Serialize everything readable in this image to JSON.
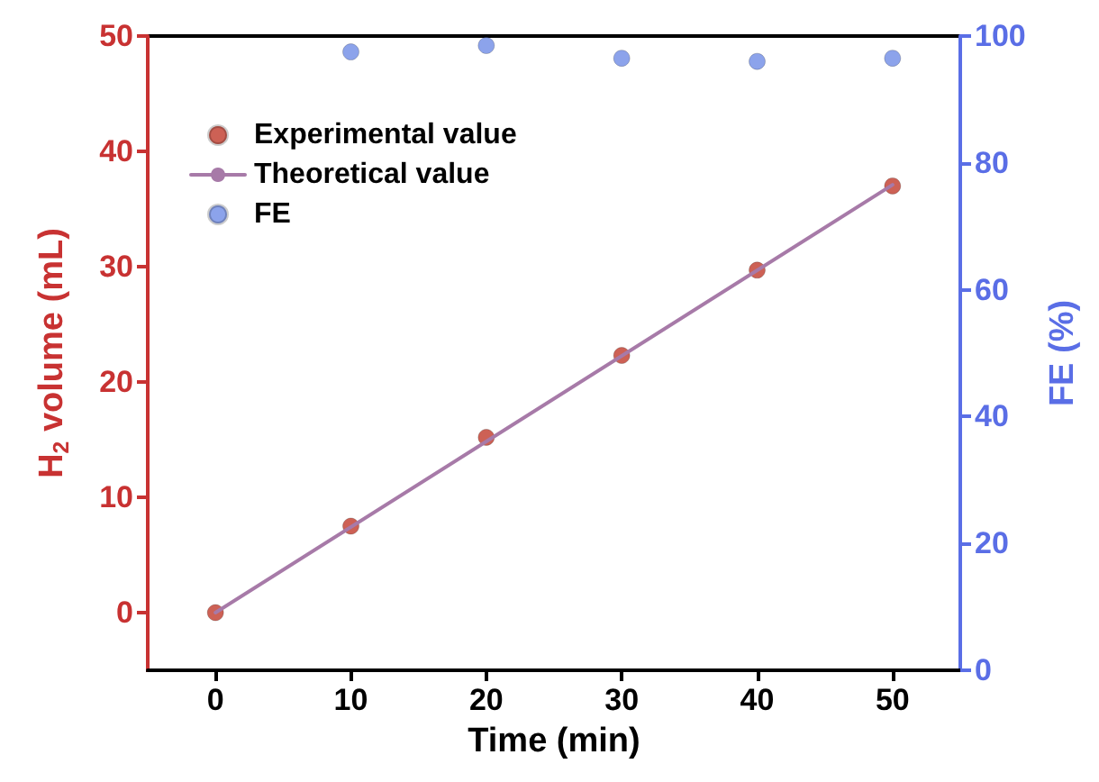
{
  "chart_data": {
    "type": "scatter",
    "xlabel": "Time (min)",
    "ylabel": "H$_{2}$ volume (mL)",
    "y2label": "FE (%)",
    "x": [
      0,
      10,
      20,
      30,
      40,
      50
    ],
    "series": [
      {
        "name": "Experimental value",
        "color": "#c0392b",
        "values": [
          0,
          7.5,
          15.2,
          22.3,
          29.7,
          37.0
        ]
      },
      {
        "name": "Theoretical value",
        "type": "line",
        "marker": "none",
        "color": "#a77aa8",
        "x": [
          0,
          50
        ],
        "values": [
          0,
          37.1
        ]
      },
      {
        "name": "FE",
        "color": "#6f8ce6",
        "axis": "y2",
        "x": [
          10,
          20,
          30,
          40,
          50
        ],
        "values": [
          97.5,
          98.5,
          96.5,
          96,
          96.5
        ]
      }
    ],
    "xlim": [
      -5,
      55
    ],
    "xticks": [
      0,
      10,
      20,
      30,
      40,
      50
    ],
    "ylim": [
      -5,
      50
    ],
    "yticks": [
      0,
      10,
      20,
      30,
      40,
      50
    ],
    "y2lim": [
      0,
      100
    ],
    "y2ticks": [
      0,
      20,
      40,
      60,
      80,
      100
    ],
    "grid": false,
    "legend": "top left",
    "marker": "circle",
    "line_style": "solid"
  }
}
